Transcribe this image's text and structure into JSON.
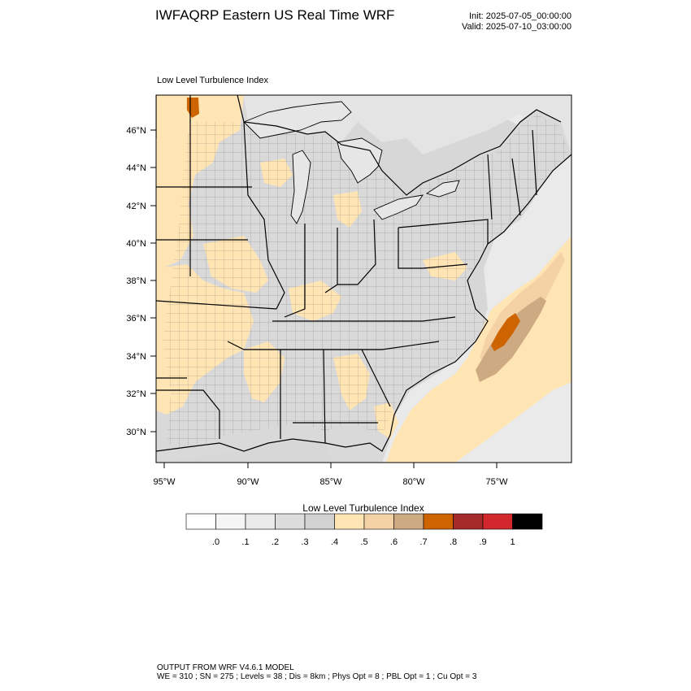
{
  "header": {
    "title": "IWFAQRP Eastern US Real Time WRF",
    "init": "Init: 2025-07-05_00:00:00",
    "valid": "Valid: 2025-07-10_03:00:00"
  },
  "map": {
    "subtitle": "Low Level Turbulence Index",
    "lat_labels": [
      "46°N",
      "44°N",
      "42°N",
      "40°N",
      "38°N",
      "36°N",
      "34°N",
      "32°N",
      "30°N"
    ],
    "lon_labels": [
      "95°W",
      "90°W",
      "85°W",
      "80°W",
      "75°W"
    ]
  },
  "colorbar": {
    "title": "Low Level Turbulence Index",
    "colors": [
      "#ffffff",
      "#f5f5f5",
      "#ebebeb",
      "#dcdcdc",
      "#d2d2d2",
      "#ffe4b4",
      "#f5d2a5",
      "#cdaa82",
      "#cd6400",
      "#a52a2a",
      "#d2282d",
      "#000000"
    ],
    "labels": [
      ".0",
      ".1",
      ".2",
      ".3",
      ".4",
      ".5",
      ".6",
      ".7",
      ".8",
      ".9",
      "1"
    ]
  },
  "footer": {
    "line1": "OUTPUT FROM WRF V4.6.1 MODEL",
    "line2": "WE = 310 ; SN = 275 ; Levels = 38 ; Dis = 8km ; Phys Opt = 8 ; PBL Opt = 1 ; Cu Opt = 3"
  }
}
